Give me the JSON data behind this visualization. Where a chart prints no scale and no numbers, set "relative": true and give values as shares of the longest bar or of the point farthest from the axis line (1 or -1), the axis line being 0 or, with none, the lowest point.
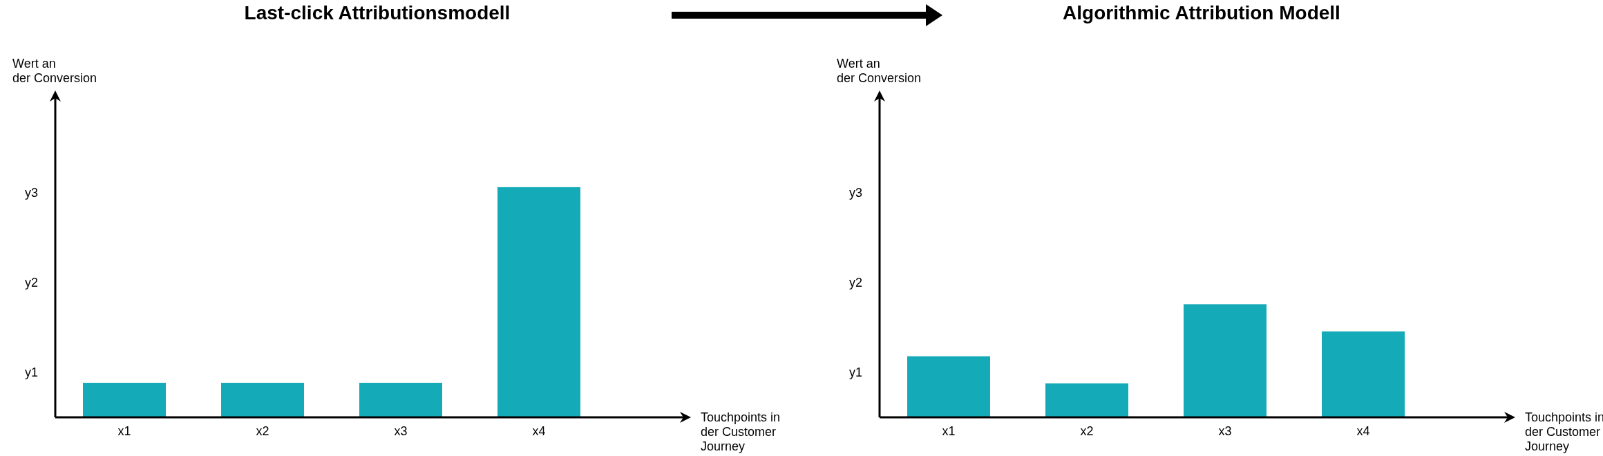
{
  "chart_data": [
    {
      "type": "bar",
      "title": "Last-click Attributionsmodell",
      "xlabel": "Touchpoints in\nder Customer\nJourney",
      "ylabel": "Wert an\nder Conversion",
      "relative": true,
      "categories": [
        "x1",
        "x2",
        "x3",
        "x4"
      ],
      "values": [
        0.15,
        0.15,
        0.15,
        1
      ],
      "color": "#15aab8",
      "ylim": [
        0,
        1.42
      ],
      "annotations": [
        "y1",
        "y2",
        "y3"
      ]
    },
    {
      "type": "bar",
      "title": "Algorithmic Attribution Modell",
      "xlabel": "Touchpoints in\nder Customer\nJourney",
      "ylabel": "Wert an\nder Conversion",
      "relative": true,
      "categories": [
        "x1",
        "x2",
        "x3",
        "x4"
      ],
      "values": [
        0.54,
        0.3,
        1,
        0.76
      ],
      "color": "#15aab8",
      "ylim": [
        0,
        2.89
      ],
      "annotations": [
        "y1",
        "y2",
        "y3"
      ]
    }
  ]
}
